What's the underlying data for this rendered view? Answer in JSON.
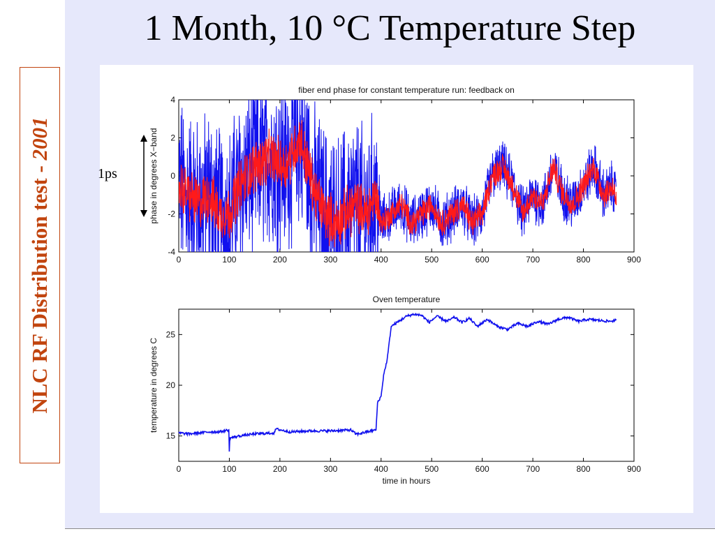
{
  "slide": {
    "title": "1 Month, 10 °C Temperature Step",
    "side_label_main": "NLC RF Distribution test - ",
    "side_label_year": "2001",
    "annotation": "1ps"
  },
  "colors": {
    "main_bg": "#e6e8fb",
    "accent": "#c1440e",
    "trace_blue": "#1010ee",
    "trace_red": "#ff1a1a"
  },
  "chart_data": [
    {
      "type": "line",
      "title": "fiber end phase for constant temperature run: feedback on",
      "xlabel": "",
      "ylabel": "phase in degrees X−band",
      "xlim": [
        0,
        900
      ],
      "ylim": [
        -4,
        4
      ],
      "xticks": [
        0,
        100,
        200,
        300,
        400,
        500,
        600,
        700,
        800,
        900
      ],
      "yticks": [
        -4,
        -2,
        0,
        2,
        4
      ],
      "grid": false,
      "series": [
        {
          "color": "blue",
          "description": "raw phase",
          "x": [
            0,
            20,
            40,
            60,
            80,
            100,
            120,
            150,
            180,
            210,
            240,
            255,
            270,
            290,
            310,
            330,
            350,
            370,
            390,
            400,
            420,
            440,
            460,
            480,
            500,
            520,
            540,
            560,
            580,
            600,
            620,
            640,
            660,
            680,
            700,
            720,
            740,
            760,
            780,
            800,
            820,
            840,
            860,
            865
          ],
          "y_center": [
            -0.5,
            -1,
            -1.5,
            -1,
            -2,
            -2,
            -0.5,
            0.5,
            1,
            0.5,
            2,
            0.5,
            -1,
            -2,
            -2.5,
            -2,
            -1.5,
            -2,
            -1,
            -2.5,
            -2,
            -1.5,
            -2.5,
            -2,
            -1.5,
            -2.5,
            -2,
            -1.5,
            -2.5,
            -2,
            0,
            0.5,
            -0.5,
            -2,
            -1,
            -1.5,
            0.5,
            -1,
            -1.5,
            -0.5,
            0.5,
            -1,
            -0.5,
            -1.5
          ],
          "band_halfwidth": [
            4,
            4,
            4,
            4,
            4,
            4,
            4,
            4,
            4,
            4,
            4,
            4,
            4,
            4,
            4,
            4,
            4,
            4,
            4,
            1.2,
            1.2,
            1.2,
            1.2,
            1.2,
            1.2,
            1.2,
            1.2,
            1.2,
            1.2,
            1.2,
            1.2,
            1.2,
            1.2,
            1.2,
            1.2,
            1.2,
            1.2,
            1.2,
            1.2,
            1.2,
            1.2,
            1.2,
            1.2,
            1.2
          ]
        },
        {
          "color": "red",
          "description": "smoothed phase",
          "x": [
            0,
            20,
            40,
            60,
            80,
            100,
            120,
            150,
            180,
            210,
            240,
            255,
            270,
            290,
            310,
            330,
            350,
            370,
            390,
            400,
            420,
            440,
            460,
            480,
            500,
            520,
            540,
            560,
            580,
            600,
            620,
            640,
            660,
            680,
            700,
            720,
            740,
            760,
            780,
            800,
            820,
            840,
            860,
            865
          ],
          "y": [
            -0.5,
            -1,
            -1.5,
            -1,
            -2,
            -2,
            -0.5,
            0.5,
            1,
            0.5,
            2,
            0.5,
            -1,
            -2,
            -2.5,
            -2,
            -1.5,
            -2,
            -1,
            -2.5,
            -2,
            -1.5,
            -2.5,
            -2,
            -1.5,
            -2.5,
            -2,
            -1.5,
            -2.5,
            -2,
            0,
            0.5,
            -0.5,
            -2,
            -1,
            -1.5,
            0.5,
            -1,
            -1.5,
            -0.5,
            0.5,
            -1,
            -0.5,
            -1.5
          ],
          "band_halfwidth": [
            1.2,
            1.2,
            1.2,
            1.2,
            1.2,
            1.2,
            1.2,
            1.2,
            1.2,
            1.2,
            1.2,
            1.2,
            1.2,
            1.2,
            1.2,
            1.2,
            1.2,
            1.2,
            1.2,
            0.6,
            0.6,
            0.6,
            0.6,
            0.6,
            0.6,
            0.6,
            0.6,
            0.6,
            0.6,
            0.6,
            0.6,
            0.6,
            0.6,
            0.6,
            0.6,
            0.6,
            0.6,
            0.6,
            0.6,
            0.6,
            0.6,
            0.6,
            0.6,
            0.6
          ]
        }
      ]
    },
    {
      "type": "line",
      "title": "Oven temperature",
      "xlabel": "time in hours",
      "ylabel": "temperature in degrees C",
      "xlim": [
        0,
        900
      ],
      "ylim": [
        12.5,
        27.5
      ],
      "xticks": [
        0,
        100,
        200,
        300,
        400,
        500,
        600,
        700,
        800,
        900
      ],
      "yticks": [
        15,
        20,
        25
      ],
      "grid": false,
      "series": [
        {
          "color": "blue",
          "x": [
            0,
            20,
            40,
            60,
            80,
            99,
            100,
            101,
            120,
            150,
            190,
            191,
            220,
            260,
            300,
            340,
            350,
            355,
            380,
            390,
            393,
            400,
            405,
            412,
            420,
            435,
            450,
            465,
            480,
            495,
            510,
            530,
            545,
            560,
            575,
            590,
            610,
            630,
            650,
            670,
            690,
            710,
            730,
            750,
            770,
            790,
            810,
            830,
            850,
            865
          ],
          "y": [
            15.3,
            15.2,
            15.3,
            15.4,
            15.4,
            15.6,
            13.4,
            14.8,
            15.0,
            15.2,
            15.3,
            15.7,
            15.4,
            15.5,
            15.5,
            15.6,
            15.2,
            15.2,
            15.5,
            15.6,
            18.3,
            18.9,
            21.0,
            22.5,
            25.8,
            26.3,
            26.8,
            27.0,
            26.9,
            26.2,
            26.8,
            26.3,
            26.7,
            26.2,
            26.6,
            25.8,
            26.5,
            25.8,
            25.5,
            26.1,
            25.8,
            26.3,
            26.0,
            26.5,
            26.7,
            26.3,
            26.5,
            26.4,
            26.3,
            26.4
          ]
        }
      ]
    }
  ]
}
